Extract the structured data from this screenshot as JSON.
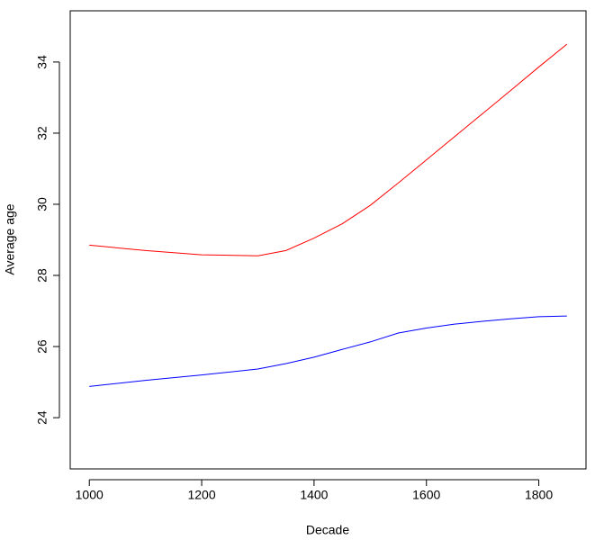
{
  "chart_data": {
    "type": "line",
    "x_label": "Decade",
    "y_label": "Average age",
    "x": [
      1000,
      1100,
      1200,
      1300,
      1350,
      1400,
      1450,
      1500,
      1550,
      1600,
      1650,
      1700,
      1750,
      1800,
      1850
    ],
    "series": [
      {
        "color": "#ff0000",
        "values": [
          28.85,
          28.7,
          28.58,
          28.55,
          28.7,
          29.05,
          29.45,
          29.97,
          30.6,
          31.25,
          31.9,
          32.55,
          33.2,
          33.86,
          34.5
        ]
      },
      {
        "color": "#0000ff",
        "values": [
          24.88,
          25.05,
          25.2,
          25.37,
          25.52,
          25.7,
          25.92,
          26.13,
          26.38,
          26.52,
          26.63,
          26.71,
          26.78,
          26.84,
          26.86
        ]
      }
    ],
    "xlim": [
      966,
      1884
    ],
    "ylim": [
      22.56,
      35.44
    ],
    "xticks": [
      1000,
      1200,
      1400,
      1600,
      1800
    ],
    "yticks": [
      24,
      26,
      28,
      30,
      32,
      34
    ]
  }
}
